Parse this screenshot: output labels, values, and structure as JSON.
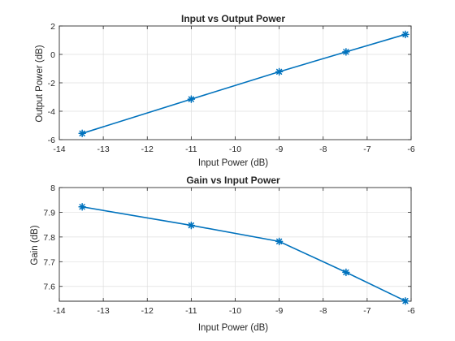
{
  "colors": {
    "series": "#0072BD"
  },
  "chart_data": [
    {
      "type": "line",
      "title": "Input vs Output Power",
      "xlabel": "Input Power (dB)",
      "ylabel": "Output Power (dB)",
      "xlim": [
        -14,
        -6
      ],
      "ylim": [
        -6,
        2
      ],
      "xticks": [
        -14,
        -13,
        -12,
        -11,
        -10,
        -9,
        -8,
        -7,
        -6
      ],
      "yticks": [
        -6,
        -4,
        -2,
        0,
        2
      ],
      "xtick_labels": [
        "-14",
        "-13",
        "-12",
        "-11",
        "-10",
        "-9",
        "-8",
        "-7",
        "-6"
      ],
      "ytick_labels": [
        "-6",
        "-4",
        "-2",
        "0",
        "2"
      ],
      "grid": true,
      "marker": "asterisk",
      "x": [
        -13.48,
        -11.0,
        -9.0,
        -7.48,
        -6.13
      ],
      "y": [
        -5.56,
        -3.15,
        -1.22,
        0.18,
        1.41
      ]
    },
    {
      "type": "line",
      "title": "Gain vs Input Power",
      "xlabel": "Input Power (dB)",
      "ylabel": "Gain (dB)",
      "xlim": [
        -14,
        -6
      ],
      "ylim": [
        7.54,
        8.0
      ],
      "xticks": [
        -14,
        -13,
        -12,
        -11,
        -10,
        -9,
        -8,
        -7,
        -6
      ],
      "yticks": [
        7.6,
        7.7,
        7.8,
        7.9,
        8.0
      ],
      "xtick_labels": [
        "-14",
        "-13",
        "-12",
        "-11",
        "-10",
        "-9",
        "-8",
        "-7",
        "-6"
      ],
      "ytick_labels": [
        "7.6",
        "7.7",
        "7.8",
        "7.9",
        "8"
      ],
      "grid": true,
      "marker": "asterisk",
      "x": [
        -13.48,
        -11.0,
        -9.0,
        -7.48,
        -6.13
      ],
      "y": [
        7.922,
        7.847,
        7.782,
        7.657,
        7.541
      ]
    }
  ]
}
